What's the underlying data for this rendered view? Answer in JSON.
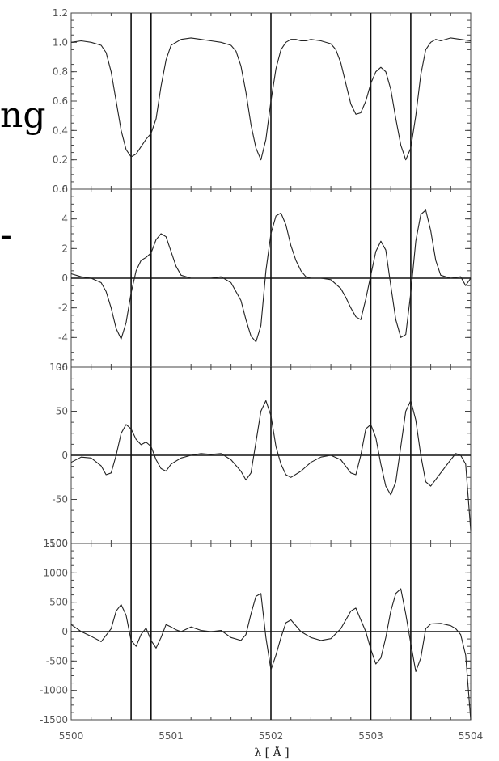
{
  "background_text": {
    "line1": "ng",
    "line2": "-"
  },
  "chart_data": {
    "type": "line",
    "xlabel": "λ [ Å ]",
    "xlim": [
      5500,
      5504
    ],
    "x_ticks": [
      5500,
      5501,
      5502,
      5503,
      5504
    ],
    "x_minor_step": 0.2,
    "vertical_lines": [
      5500.6,
      5500.8,
      5502.0,
      5503.0,
      5503.4
    ],
    "line_color": "#222222",
    "panels": [
      {
        "ylim": [
          0,
          1.2
        ],
        "y_ticks": [
          0.0,
          0.2,
          0.4,
          0.6,
          0.8,
          1.0,
          1.2
        ],
        "y_tick_labels": [
          "0.0",
          "0.2",
          "0.4",
          "0.6",
          "0.8",
          "1.0",
          "1.2"
        ],
        "zero_line": false,
        "series": [
          {
            "x": [
              5500.0,
              5500.1,
              5500.2,
              5500.3,
              5500.35,
              5500.4,
              5500.45,
              5500.5,
              5500.55,
              5500.6,
              5500.65,
              5500.7,
              5500.75,
              5500.8,
              5500.85,
              5500.9,
              5500.95,
              5501.0,
              5501.1,
              5501.2,
              5501.3,
              5501.4,
              5501.5,
              5501.6,
              5501.65,
              5501.7,
              5501.75,
              5501.8,
              5501.85,
              5501.9,
              5501.95,
              5502.0,
              5502.05,
              5502.1,
              5502.15,
              5502.2,
              5502.25,
              5502.3,
              5502.35,
              5502.4,
              5502.5,
              5502.6,
              5502.65,
              5502.7,
              5502.75,
              5502.8,
              5502.85,
              5502.9,
              5502.95,
              5503.0,
              5503.05,
              5503.1,
              5503.15,
              5503.2,
              5503.25,
              5503.3,
              5503.35,
              5503.4,
              5503.45,
              5503.5,
              5503.55,
              5503.6,
              5503.65,
              5503.7,
              5503.8,
              5503.9,
              5504.0
            ],
            "y": [
              1.0,
              1.01,
              1.0,
              0.98,
              0.93,
              0.8,
              0.6,
              0.4,
              0.27,
              0.22,
              0.24,
              0.29,
              0.34,
              0.38,
              0.48,
              0.7,
              0.88,
              0.98,
              1.02,
              1.03,
              1.02,
              1.01,
              1.0,
              0.98,
              0.94,
              0.84,
              0.66,
              0.44,
              0.28,
              0.2,
              0.34,
              0.6,
              0.82,
              0.95,
              1.0,
              1.02,
              1.02,
              1.01,
              1.01,
              1.02,
              1.01,
              0.99,
              0.95,
              0.86,
              0.72,
              0.58,
              0.51,
              0.52,
              0.6,
              0.72,
              0.8,
              0.83,
              0.8,
              0.68,
              0.48,
              0.3,
              0.2,
              0.28,
              0.5,
              0.78,
              0.95,
              1.0,
              1.02,
              1.01,
              1.03,
              1.02,
              1.01
            ]
          }
        ]
      },
      {
        "ylim": [
          -6,
          6
        ],
        "y_ticks": [
          -6,
          -4,
          -2,
          0,
          2,
          4,
          6
        ],
        "y_tick_labels": [
          "-6",
          "-4",
          "-2",
          "0",
          "2",
          "4",
          "6"
        ],
        "zero_line": true,
        "series": [
          {
            "x": [
              5500.0,
              5500.1,
              5500.2,
              5500.3,
              5500.35,
              5500.4,
              5500.45,
              5500.5,
              5500.55,
              5500.6,
              5500.65,
              5500.7,
              5500.75,
              5500.8,
              5500.85,
              5500.9,
              5500.95,
              5501.0,
              5501.05,
              5501.1,
              5501.2,
              5501.3,
              5501.4,
              5501.5,
              5501.6,
              5501.7,
              5501.75,
              5501.8,
              5501.85,
              5501.9,
              5501.95,
              5502.0,
              5502.05,
              5502.1,
              5502.15,
              5502.2,
              5502.25,
              5502.3,
              5502.35,
              5502.4,
              5502.5,
              5502.6,
              5502.7,
              5502.75,
              5502.8,
              5502.85,
              5502.9,
              5502.95,
              5503.0,
              5503.05,
              5503.1,
              5503.15,
              5503.2,
              5503.25,
              5503.3,
              5503.35,
              5503.4,
              5503.45,
              5503.5,
              5503.55,
              5503.6,
              5503.65,
              5503.7,
              5503.8,
              5503.9,
              5503.95,
              5504.0
            ],
            "y": [
              0.3,
              0.1,
              0.0,
              -0.3,
              -0.9,
              -2.0,
              -3.4,
              -4.1,
              -3.0,
              -1.0,
              0.5,
              1.2,
              1.4,
              1.7,
              2.6,
              3.0,
              2.8,
              1.8,
              0.8,
              0.2,
              0.0,
              0.0,
              0.0,
              0.1,
              -0.3,
              -1.5,
              -2.8,
              -3.9,
              -4.3,
              -3.2,
              0.5,
              3.0,
              4.2,
              4.4,
              3.6,
              2.2,
              1.2,
              0.5,
              0.1,
              0.0,
              0.0,
              -0.1,
              -0.7,
              -1.3,
              -2.0,
              -2.6,
              -2.8,
              -1.4,
              0.2,
              1.8,
              2.5,
              1.9,
              -0.5,
              -2.8,
              -4.0,
              -3.8,
              -1.0,
              2.5,
              4.3,
              4.6,
              3.2,
              1.2,
              0.2,
              0.0,
              0.1,
              -0.5,
              0.0
            ]
          }
        ]
      },
      {
        "ylim": [
          -100,
          100
        ],
        "y_ticks": [
          -100,
          -50,
          0,
          50,
          100
        ],
        "y_tick_labels": [
          "-100",
          "-50",
          "0",
          "50",
          "100"
        ],
        "zero_line": true,
        "series": [
          {
            "x": [
              5500.0,
              5500.1,
              5500.2,
              5500.3,
              5500.35,
              5500.4,
              5500.45,
              5500.5,
              5500.55,
              5500.6,
              5500.65,
              5500.7,
              5500.75,
              5500.8,
              5500.85,
              5500.9,
              5500.95,
              5501.0,
              5501.1,
              5501.2,
              5501.3,
              5501.4,
              5501.5,
              5501.6,
              5501.7,
              5501.75,
              5501.8,
              5501.85,
              5501.9,
              5501.95,
              5502.0,
              5502.05,
              5502.1,
              5502.15,
              5502.2,
              5502.3,
              5502.4,
              5502.5,
              5502.6,
              5502.7,
              5502.8,
              5502.85,
              5502.9,
              5502.95,
              5503.0,
              5503.05,
              5503.1,
              5503.15,
              5503.2,
              5503.25,
              5503.3,
              5503.35,
              5503.4,
              5503.45,
              5503.5,
              5503.55,
              5503.6,
              5503.7,
              5503.8,
              5503.85,
              5503.9,
              5503.95,
              5504.0
            ],
            "y": [
              -8,
              -2,
              -3,
              -12,
              -22,
              -20,
              0,
              25,
              35,
              30,
              18,
              12,
              15,
              10,
              -5,
              -15,
              -18,
              -10,
              -3,
              0,
              2,
              1,
              2,
              -5,
              -18,
              -28,
              -20,
              15,
              50,
              62,
              45,
              10,
              -10,
              -22,
              -25,
              -18,
              -8,
              -2,
              0,
              -5,
              -20,
              -22,
              0,
              30,
              35,
              20,
              -10,
              -35,
              -45,
              -30,
              10,
              50,
              62,
              40,
              0,
              -30,
              -35,
              -20,
              -5,
              2,
              0,
              -10,
              -85
            ]
          }
        ]
      },
      {
        "ylim": [
          -1500,
          1500
        ],
        "y_ticks": [
          -1500,
          -1000,
          -500,
          0,
          500,
          1000,
          1500
        ],
        "y_tick_labels": [
          "-1500",
          "-1000",
          "-500",
          "0",
          "500",
          "1000",
          "1500"
        ],
        "zero_line": true,
        "series": [
          {
            "x": [
              5500.0,
              5500.05,
              5500.1,
              5500.2,
              5500.3,
              5500.4,
              5500.45,
              5500.5,
              5500.55,
              5500.6,
              5500.65,
              5500.7,
              5500.75,
              5500.8,
              5500.85,
              5500.9,
              5500.95,
              5501.0,
              5501.05,
              5501.1,
              5501.2,
              5501.3,
              5501.4,
              5501.5,
              5501.6,
              5501.7,
              5501.75,
              5501.8,
              5501.85,
              5501.9,
              5501.95,
              5502.0,
              5502.05,
              5502.1,
              5502.15,
              5502.2,
              5502.3,
              5502.4,
              5502.5,
              5502.6,
              5502.7,
              5502.8,
              5502.85,
              5502.9,
              5502.95,
              5503.0,
              5503.05,
              5503.1,
              5503.15,
              5503.2,
              5503.25,
              5503.3,
              5503.35,
              5503.4,
              5503.45,
              5503.5,
              5503.55,
              5503.6,
              5503.7,
              5503.8,
              5503.85,
              5503.9,
              5503.95,
              5504.0
            ],
            "y": [
              120,
              60,
              0,
              -80,
              -170,
              50,
              350,
              460,
              280,
              -150,
              -250,
              -50,
              60,
              -150,
              -280,
              -100,
              120,
              80,
              30,
              0,
              80,
              20,
              0,
              20,
              -100,
              -150,
              -50,
              300,
              600,
              650,
              -100,
              -650,
              -400,
              -100,
              150,
              200,
              0,
              -100,
              -150,
              -120,
              50,
              350,
              400,
              200,
              0,
              -300,
              -550,
              -450,
              -100,
              350,
              650,
              730,
              300,
              -200,
              -680,
              -450,
              50,
              130,
              140,
              100,
              50,
              -50,
              -400,
              -1500
            ]
          }
        ]
      }
    ]
  }
}
